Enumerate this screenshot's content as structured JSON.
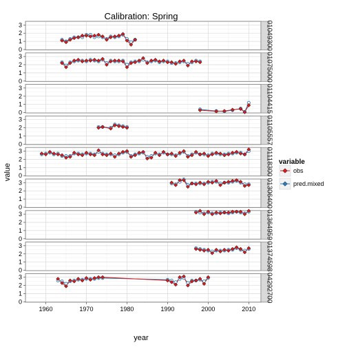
{
  "chart_data": {
    "type": "line",
    "title": "Calibration: Spring",
    "xlabel": "year",
    "ylabel": "value",
    "xlim": [
      1955,
      2013
    ],
    "ylim": [
      0,
      3.4
    ],
    "x_ticks": [
      1960,
      1970,
      1980,
      1990,
      2000,
      2010
    ],
    "y_ticks": [
      0,
      1,
      2,
      3
    ],
    "grid": true,
    "legend": {
      "title": "variable",
      "position": "right",
      "entries": [
        {
          "name": "obs",
          "color": "#d7191c"
        },
        {
          "name": "pred.mixed",
          "color": "#2c7bb6"
        }
      ]
    },
    "colors": {
      "obs": "#d7191c",
      "pred_mixed": "#2c7bb6"
    },
    "panels": [
      {
        "label": "01049300",
        "series": [
          {
            "name": "obs",
            "x": [
              1964,
              1965,
              1966,
              1967,
              1968,
              1969,
              1970,
              1971,
              1972,
              1973,
              1974,
              1975,
              1976,
              1977,
              1978,
              1979,
              1980,
              1981,
              1982
            ],
            "y": [
              1.1,
              0.9,
              1.2,
              1.4,
              1.5,
              1.7,
              1.7,
              1.6,
              1.7,
              1.8,
              1.6,
              1.2,
              1.5,
              1.6,
              1.7,
              1.9,
              1.1,
              0.6,
              1.2
            ]
          },
          {
            "name": "pred.mixed",
            "x": [
              1964,
              1965,
              1966,
              1967,
              1968,
              1969,
              1970,
              1971,
              1972,
              1973,
              1974,
              1975,
              1976,
              1977,
              1978,
              1979,
              1980,
              1981,
              1982
            ],
            "y": [
              1.2,
              1.0,
              1.3,
              1.5,
              1.5,
              1.5,
              1.8,
              1.8,
              1.5,
              1.6,
              1.5,
              1.3,
              1.6,
              1.5,
              1.6,
              1.8,
              1.3,
              0.9,
              1.2
            ]
          }
        ]
      },
      {
        "label": "01075000",
        "series": [
          {
            "name": "obs",
            "x": [
              1964,
              1965,
              1966,
              1967,
              1968,
              1969,
              1970,
              1971,
              1972,
              1973,
              1974,
              1975,
              1976,
              1977,
              1978,
              1979,
              1980,
              1981,
              1982,
              1983,
              1984,
              1985,
              1986,
              1987,
              1988,
              1989,
              1990,
              1991,
              1992,
              1993,
              1994,
              1995,
              1996,
              1997,
              1998
            ],
            "y": [
              2.2,
              1.7,
              2.2,
              2.5,
              2.6,
              2.4,
              2.5,
              2.5,
              2.6,
              2.5,
              2.7,
              2.0,
              2.4,
              2.5,
              2.5,
              2.4,
              1.7,
              2.2,
              2.3,
              2.5,
              2.8,
              2.2,
              2.5,
              2.6,
              2.4,
              2.5,
              2.3,
              2.3,
              2.1,
              2.4,
              2.5,
              1.9,
              2.4,
              2.4,
              2.3
            ]
          },
          {
            "name": "pred.mixed",
            "x": [
              1964,
              1965,
              1966,
              1967,
              1968,
              1969,
              1970,
              1971,
              1972,
              1973,
              1974,
              1975,
              1976,
              1977,
              1978,
              1979,
              1980,
              1981,
              1982,
              1983,
              1984,
              1985,
              1986,
              1987,
              1988,
              1989,
              1990,
              1991,
              1992,
              1993,
              1994,
              1995,
              1996,
              1997,
              1998
            ],
            "y": [
              2.3,
              1.9,
              2.3,
              2.4,
              2.5,
              2.5,
              2.4,
              2.6,
              2.5,
              2.4,
              2.6,
              2.2,
              2.5,
              2.4,
              2.4,
              2.5,
              2.0,
              2.3,
              2.4,
              2.4,
              2.6,
              2.3,
              2.4,
              2.5,
              2.3,
              2.4,
              2.4,
              2.2,
              2.2,
              2.3,
              2.4,
              2.1,
              2.3,
              2.5,
              2.4
            ]
          }
        ]
      },
      {
        "label": "01104415",
        "series": [
          {
            "name": "obs",
            "x": [
              1998,
              2002,
              2004,
              2006,
              2008,
              2009,
              2010
            ],
            "y": [
              0.3,
              0.15,
              0.2,
              0.35,
              0.45,
              0.05,
              0.9
            ]
          },
          {
            "name": "pred.mixed",
            "x": [
              1998,
              2002,
              2004,
              2006,
              2008,
              2009,
              2010
            ],
            "y": [
              0.4,
              0.2,
              0.15,
              0.3,
              0.5,
              0.1,
              1.2
            ]
          }
        ]
      },
      {
        "label": "01105557",
        "series": [
          {
            "name": "obs",
            "x": [
              1973,
              1974,
              1976,
              1977,
              1978,
              1979,
              1980
            ],
            "y": [
              2.0,
              2.1,
              1.9,
              2.3,
              2.2,
              2.1,
              2.0
            ]
          },
          {
            "name": "pred.mixed",
            "x": [
              1973,
              1974,
              1976,
              1977,
              1978,
              1979,
              1980
            ],
            "y": [
              2.1,
              2.1,
              2.0,
              2.4,
              2.3,
              2.2,
              2.1
            ]
          }
        ]
      },
      {
        "label": "01118300",
        "series": [
          {
            "name": "obs",
            "x": [
              1959,
              1960,
              1961,
              1962,
              1963,
              1964,
              1965,
              1966,
              1967,
              1968,
              1969,
              1970,
              1971,
              1972,
              1973,
              1974,
              1975,
              1976,
              1977,
              1978,
              1979,
              1980,
              1981,
              1982,
              1983,
              1984,
              1985,
              1986,
              1987,
              1988,
              1989,
              1990,
              1991,
              1992,
              1993,
              1994,
              1995,
              1996,
              1997,
              1998,
              1999,
              2000,
              2001,
              2002,
              2003,
              2004,
              2005,
              2006,
              2007,
              2008,
              2009,
              2010
            ],
            "y": [
              2.7,
              2.6,
              2.9,
              2.7,
              2.6,
              2.5,
              2.2,
              2.3,
              2.8,
              2.6,
              2.5,
              2.8,
              2.6,
              2.5,
              3.1,
              2.6,
              2.5,
              2.7,
              2.3,
              2.7,
              2.9,
              3.0,
              2.3,
              2.5,
              2.8,
              2.9,
              2.1,
              2.2,
              2.8,
              2.5,
              2.9,
              2.6,
              2.7,
              2.4,
              2.8,
              3.0,
              2.3,
              2.5,
              2.9,
              2.6,
              2.7,
              2.4,
              2.6,
              2.8,
              2.7,
              2.5,
              2.6,
              2.8,
              2.9,
              2.7,
              2.6,
              3.2
            ]
          },
          {
            "name": "pred.mixed",
            "x": [
              1959,
              1960,
              1961,
              1962,
              1963,
              1964,
              1965,
              1966,
              1967,
              1968,
              1969,
              1970,
              1971,
              1972,
              1973,
              1974,
              1975,
              1976,
              1977,
              1978,
              1979,
              1980,
              1981,
              1982,
              1983,
              1984,
              1985,
              1986,
              1987,
              1988,
              1989,
              1990,
              1991,
              1992,
              1993,
              1994,
              1995,
              1996,
              1997,
              1998,
              1999,
              2000,
              2001,
              2002,
              2003,
              2004,
              2005,
              2006,
              2007,
              2008,
              2009,
              2010
            ],
            "y": [
              2.6,
              2.7,
              2.8,
              2.6,
              2.7,
              2.4,
              2.4,
              2.4,
              2.7,
              2.7,
              2.6,
              2.7,
              2.7,
              2.6,
              2.9,
              2.7,
              2.6,
              2.6,
              2.5,
              2.6,
              2.8,
              2.9,
              2.4,
              2.6,
              2.7,
              2.8,
              2.3,
              2.4,
              2.7,
              2.6,
              2.8,
              2.6,
              2.6,
              2.5,
              2.7,
              2.9,
              2.4,
              2.6,
              2.8,
              2.6,
              2.6,
              2.5,
              2.7,
              2.7,
              2.6,
              2.6,
              2.7,
              2.7,
              2.8,
              2.8,
              2.6,
              3.0
            ]
          }
        ]
      },
      {
        "label": "01306400",
        "series": [
          {
            "name": "obs",
            "x": [
              1991,
              1992,
              1993,
              1994,
              1995,
              1996,
              1997,
              1998,
              1999,
              2000,
              2001,
              2002,
              2003,
              2004,
              2005,
              2006,
              2007,
              2008,
              2009,
              2010
            ],
            "y": [
              3.0,
              2.7,
              3.3,
              3.3,
              2.5,
              2.9,
              2.8,
              3.0,
              2.8,
              3.1,
              3.0,
              3.2,
              2.7,
              3.0,
              3.1,
              3.2,
              3.3,
              3.1,
              2.6,
              2.7
            ]
          },
          {
            "name": "pred.mixed",
            "x": [
              1991,
              1992,
              1993,
              1994,
              1995,
              1996,
              1997,
              1998,
              1999,
              2000,
              2001,
              2002,
              2003,
              2004,
              2005,
              2006,
              2007,
              2008,
              2009,
              2010
            ],
            "y": [
              2.9,
              2.8,
              3.1,
              3.4,
              2.7,
              2.9,
              2.9,
              2.9,
              2.9,
              3.0,
              3.1,
              3.1,
              2.9,
              3.0,
              3.0,
              3.1,
              3.2,
              3.0,
              2.8,
              2.8
            ]
          }
        ]
      },
      {
        "label": "01364959",
        "series": [
          {
            "name": "obs",
            "x": [
              1997,
              1998,
              1999,
              2000,
              2001,
              2002,
              2003,
              2004,
              2005,
              2006,
              2007,
              2008,
              2009,
              2010
            ],
            "y": [
              3.2,
              3.4,
              3.0,
              3.3,
              3.0,
              3.2,
              3.1,
              3.2,
              3.2,
              3.3,
              3.3,
              3.3,
              3.0,
              3.4
            ]
          },
          {
            "name": "pred.mixed",
            "x": [
              1997,
              1998,
              1999,
              2000,
              2001,
              2002,
              2003,
              2004,
              2005,
              2006,
              2007,
              2008,
              2009,
              2010
            ],
            "y": [
              3.3,
              3.2,
              3.1,
              3.2,
              3.1,
              3.1,
              3.2,
              3.2,
              3.1,
              3.2,
              3.3,
              3.2,
              3.1,
              3.3
            ]
          }
        ]
      },
      {
        "label": "01374598",
        "series": [
          {
            "name": "obs",
            "x": [
              1997,
              1998,
              1999,
              2000,
              2001,
              2002,
              2003,
              2004,
              2005,
              2006,
              2007,
              2008,
              2009,
              2010
            ],
            "y": [
              2.6,
              2.5,
              2.4,
              2.5,
              2.1,
              2.5,
              2.3,
              2.5,
              2.4,
              2.6,
              2.8,
              2.6,
              2.2,
              2.7
            ]
          },
          {
            "name": "pred.mixed",
            "x": [
              1997,
              1998,
              1999,
              2000,
              2001,
              2002,
              2003,
              2004,
              2005,
              2006,
              2007,
              2008,
              2009,
              2010
            ],
            "y": [
              2.7,
              2.6,
              2.5,
              2.4,
              2.3,
              2.4,
              2.4,
              2.4,
              2.5,
              2.5,
              2.7,
              2.5,
              2.4,
              2.6
            ]
          }
        ]
      },
      {
        "label": "04292700",
        "series": [
          {
            "name": "obs",
            "x": [
              1963,
              1964,
              1965,
              1966,
              1967,
              1968,
              1969,
              1970,
              1971,
              1972,
              1973,
              1974,
              1990,
              1991,
              1992,
              1993,
              1994,
              1995,
              1996,
              1997,
              1998,
              1999,
              2000
            ],
            "y": [
              2.8,
              2.3,
              1.9,
              2.6,
              2.5,
              2.8,
              2.6,
              2.9,
              2.7,
              2.9,
              3.0,
              3.0,
              2.6,
              2.4,
              2.1,
              3.0,
              3.1,
              2.0,
              2.5,
              2.6,
              2.8,
              2.2,
              3.0
            ]
          },
          {
            "name": "pred.mixed",
            "x": [
              1963,
              1964,
              1965,
              1966,
              1967,
              1968,
              1969,
              1970,
              1971,
              1972,
              1973,
              1974,
              1990,
              1991,
              1992,
              1993,
              1994,
              1995,
              1996,
              1997,
              1998,
              1999,
              2000
            ],
            "y": [
              2.6,
              2.5,
              2.2,
              2.5,
              2.6,
              2.7,
              2.7,
              2.8,
              2.8,
              2.8,
              2.9,
              2.9,
              2.7,
              2.6,
              2.4,
              2.8,
              2.9,
              2.3,
              2.6,
              2.6,
              2.7,
              2.5,
              2.9
            ]
          }
        ]
      }
    ]
  }
}
